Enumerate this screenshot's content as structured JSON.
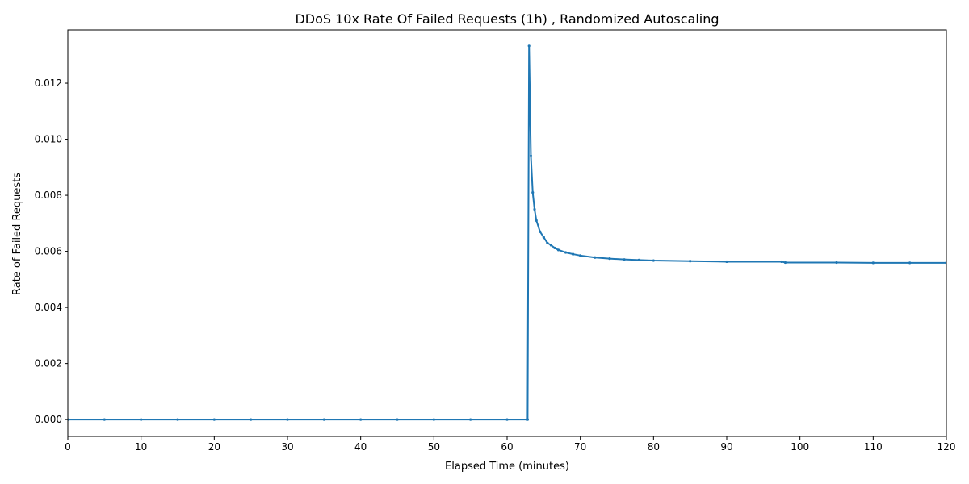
{
  "chart_data": {
    "type": "line",
    "title": "DDoS 10x Rate Of Failed Requests (1h) , Randomized Autoscaling",
    "xlabel": "Elapsed Time (minutes)",
    "ylabel": "Rate of Failed Requests",
    "xlim": [
      0,
      120
    ],
    "ylim": [
      -0.0006,
      0.0139
    ],
    "xticks": [
      0,
      10,
      20,
      30,
      40,
      50,
      60,
      70,
      80,
      90,
      100,
      110,
      120
    ],
    "yticks": [
      0.0,
      0.002,
      0.004,
      0.006,
      0.008,
      0.01,
      0.012
    ],
    "ytick_labels": [
      "0.000",
      "0.002",
      "0.004",
      "0.006",
      "0.008",
      "0.010",
      "0.012"
    ],
    "grid": false,
    "marker": "dot",
    "series": [
      {
        "color": "#1f77b4",
        "points": [
          [
            0,
            0.0
          ],
          [
            5,
            0.0
          ],
          [
            10,
            0.0
          ],
          [
            15,
            0.0
          ],
          [
            20,
            0.0
          ],
          [
            25,
            0.0
          ],
          [
            30,
            0.0
          ],
          [
            35,
            0.0
          ],
          [
            40,
            0.0
          ],
          [
            45,
            0.0
          ],
          [
            50,
            0.0
          ],
          [
            55,
            0.0
          ],
          [
            60,
            0.0
          ],
          [
            62.8,
            0.0
          ],
          [
            63.0,
            0.01333
          ],
          [
            63.25,
            0.0094
          ],
          [
            63.5,
            0.0081
          ],
          [
            63.75,
            0.0075
          ],
          [
            64.0,
            0.0071
          ],
          [
            64.5,
            0.0067
          ],
          [
            65.0,
            0.0065
          ],
          [
            65.5,
            0.0063
          ],
          [
            66.0,
            0.00622
          ],
          [
            66.5,
            0.00612
          ],
          [
            67.0,
            0.00605
          ],
          [
            68.0,
            0.00596
          ],
          [
            69.0,
            0.0059
          ],
          [
            70.0,
            0.00585
          ],
          [
            72.0,
            0.00578
          ],
          [
            74.0,
            0.00574
          ],
          [
            76.0,
            0.00571
          ],
          [
            78.0,
            0.00569
          ],
          [
            80.0,
            0.00567
          ],
          [
            85.0,
            0.00565
          ],
          [
            90.0,
            0.00563
          ],
          [
            97.5,
            0.00563
          ],
          [
            98.0,
            0.0056
          ],
          [
            105.0,
            0.0056
          ],
          [
            110.0,
            0.00559
          ],
          [
            115.0,
            0.00559
          ],
          [
            120.0,
            0.00559
          ]
        ]
      }
    ]
  }
}
